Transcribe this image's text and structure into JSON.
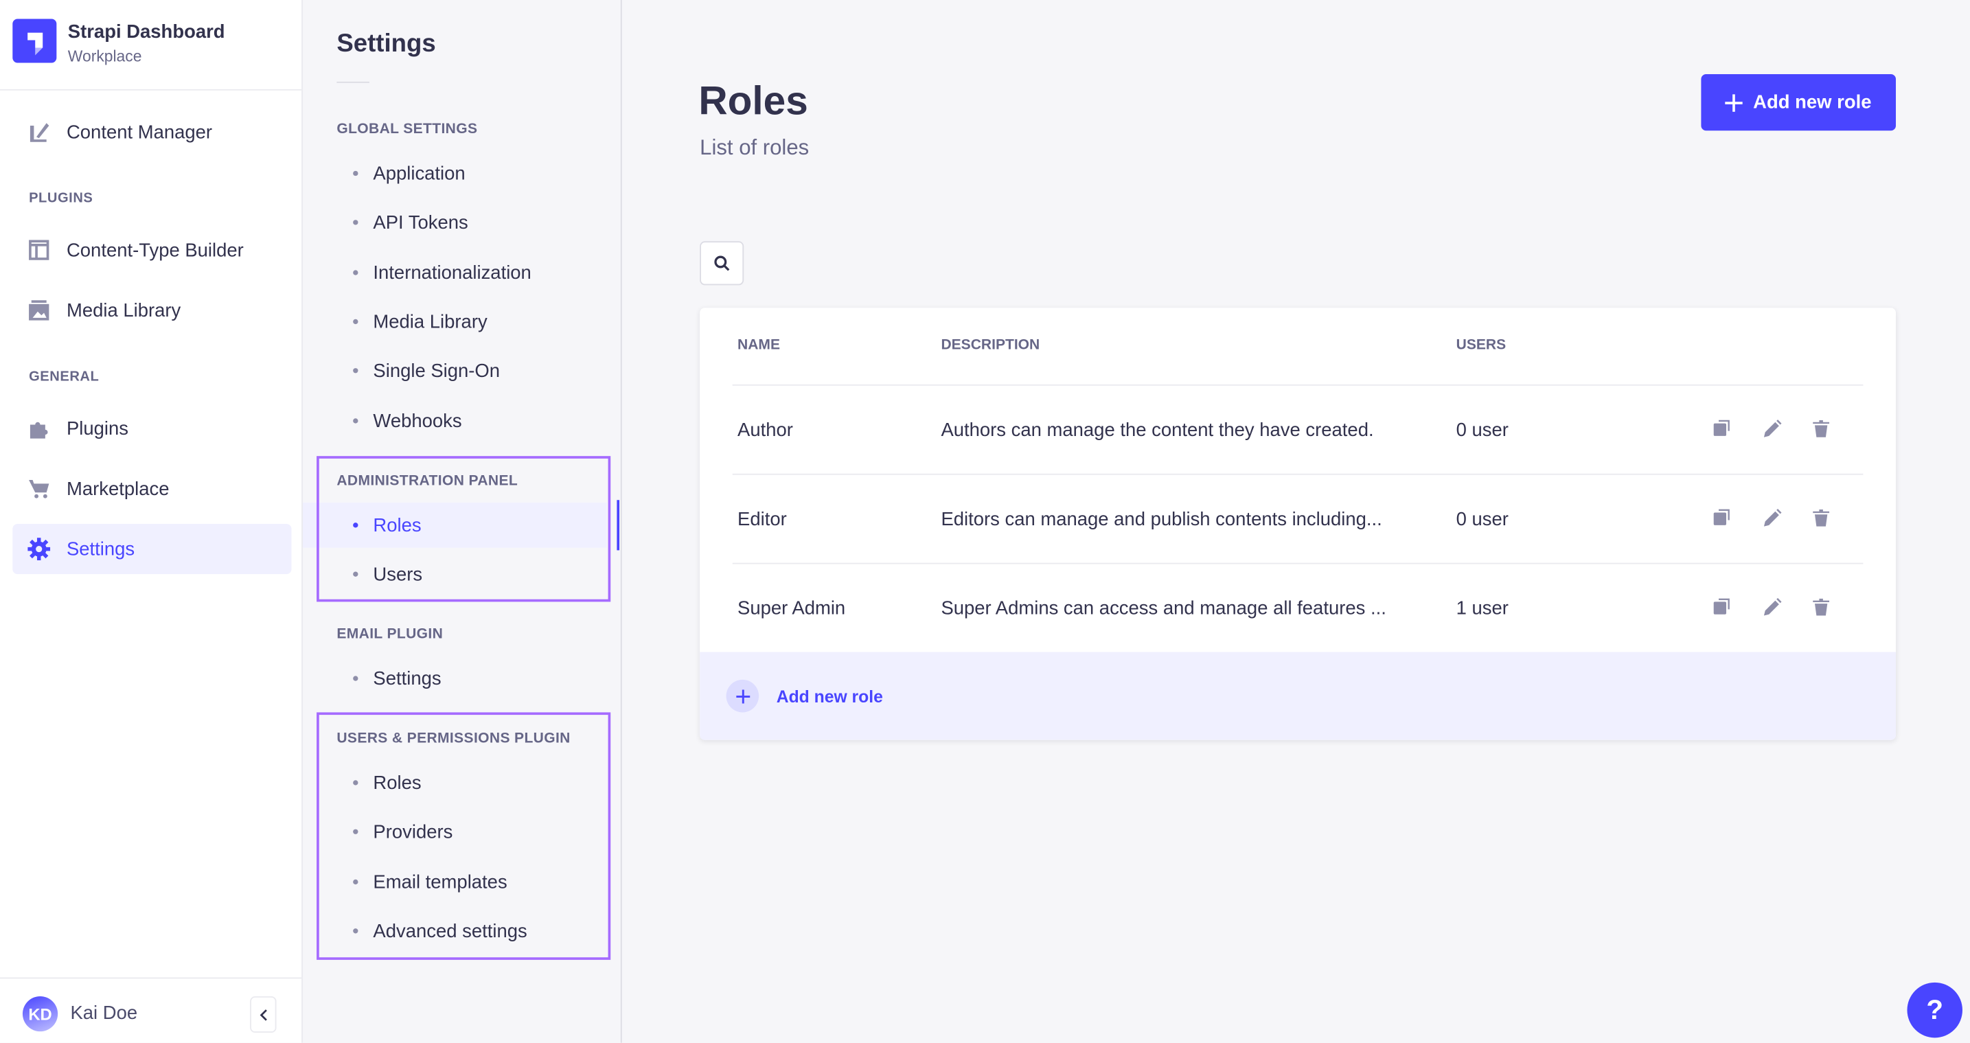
{
  "brand": {
    "title": "Strapi Dashboard",
    "subtitle": "Workplace"
  },
  "nav": {
    "content_manager": "Content Manager",
    "plugins_label": "PLUGINS",
    "content_type_builder": "Content-Type Builder",
    "media_library": "Media Library",
    "general_label": "GENERAL",
    "plugins": "Plugins",
    "marketplace": "Marketplace",
    "settings": "Settings"
  },
  "user": {
    "initials": "KD",
    "name": "Kai Doe"
  },
  "settings_nav": {
    "title": "Settings",
    "sections": [
      {
        "label": "GLOBAL SETTINGS",
        "items": [
          "Application",
          "API Tokens",
          "Internationalization",
          "Media Library",
          "Single Sign-On",
          "Webhooks"
        ]
      },
      {
        "label": "ADMINISTRATION PANEL",
        "items": [
          "Roles",
          "Users"
        ]
      },
      {
        "label": "EMAIL PLUGIN",
        "items": [
          "Settings"
        ]
      },
      {
        "label": "USERS & PERMISSIONS PLUGIN",
        "items": [
          "Roles",
          "Providers",
          "Email templates",
          "Advanced settings"
        ]
      }
    ],
    "active": "Roles"
  },
  "page": {
    "title": "Roles",
    "subtitle": "List of roles",
    "add_button": "Add new role"
  },
  "table": {
    "headers": [
      "NAME",
      "DESCRIPTION",
      "USERS"
    ],
    "rows": [
      {
        "name": "Author",
        "description": "Authors can manage the content they have created.",
        "users": "0 user"
      },
      {
        "name": "Editor",
        "description": "Editors can manage and publish contents including...",
        "users": "0 user"
      },
      {
        "name": "Super Admin",
        "description": "Super Admins can access and manage all features ...",
        "users": "1 user"
      }
    ],
    "footer_add": "Add new role"
  },
  "help": "?",
  "colors": {
    "accent": "#4945ff",
    "highlight": "#a56bff",
    "icon": "#8e8ea9"
  }
}
